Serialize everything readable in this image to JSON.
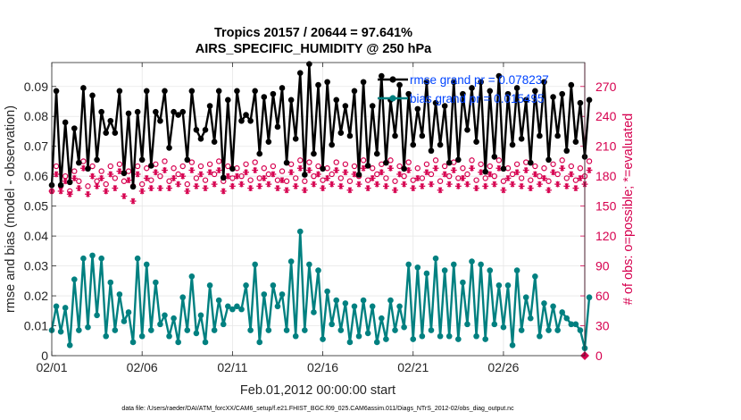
{
  "chart_data": {
    "type": "line",
    "title": "Tropics 20157 / 20644 = 97.641%",
    "subtitle": "AIRS_SPECIFIC_HUMIDITY @ 250 hPa",
    "xlabel": "Feb.01,2012 00:00:00 start",
    "ylabel_left": "rmse and bias (model - observation)",
    "ylabel_right": "# of obs: o=possible; *=evaluated",
    "footnote": "data file: /Users/raeder/DAI/ATM_forcXX/CAM6_setup/f.e21.FHIST_BGC.f09_025.CAM6assim.011/Diags_NTrS_2012-02/obs_diag_output.nc",
    "xlim": [
      0,
      29.5
    ],
    "ylim_left": [
      0,
      0.098
    ],
    "ylim_right": [
      0,
      294
    ],
    "x_ticks": [
      0,
      5,
      10,
      15,
      20,
      25
    ],
    "x_tick_labels": [
      "02/01",
      "02/06",
      "02/11",
      "02/16",
      "02/21",
      "02/26"
    ],
    "y_left_ticks": [
      0,
      0.01,
      0.02,
      0.03,
      0.04,
      0.05,
      0.06,
      0.07,
      0.08,
      0.09
    ],
    "y_left_tick_labels": [
      "0",
      "0.01",
      "0.02",
      "0.03",
      "0.04",
      "0.05",
      "0.06",
      "0.07",
      "0.08",
      "0.09"
    ],
    "y_right_ticks": [
      0,
      30,
      60,
      90,
      120,
      150,
      180,
      210,
      240,
      270
    ],
    "y_right_tick_labels": [
      "0",
      "30",
      "60",
      "90",
      "120",
      "150",
      "180",
      "210",
      "240",
      "270"
    ],
    "grid": true,
    "legend": {
      "placement": "top-right",
      "entries": [
        {
          "label": "rmse grand pr = 0.078237",
          "series": "rmse"
        },
        {
          "label": "bias grand pr = 0.015495",
          "series": "bias"
        }
      ]
    },
    "colors": {
      "rmse": "#000000",
      "bias": "#008080",
      "obs": "#d6004f",
      "legend_text": "#0044ff"
    },
    "x_step": 0.25,
    "series": [
      {
        "name": "rmse",
        "axis": "left",
        "values": [
          0.057,
          0.0885,
          0.057,
          0.078,
          0.058,
          0.076,
          0.0645,
          0.0895,
          0.0625,
          0.087,
          0.0655,
          0.0815,
          0.0745,
          0.0785,
          0.0745,
          0.0885,
          0.061,
          0.081,
          0.0565,
          0.0815,
          0.0655,
          0.0885,
          0.0635,
          0.0815,
          0.0785,
          0.0885,
          0.0695,
          0.0815,
          0.0805,
          0.0815,
          0.0655,
          0.0885,
          0.0755,
          0.0725,
          0.0755,
          0.0835,
          0.0715,
          0.0885,
          0.0595,
          0.0855,
          0.0625,
          0.0885,
          0.0785,
          0.0805,
          0.0785,
          0.0885,
          0.0675,
          0.0865,
          0.0715,
          0.0875,
          0.0765,
          0.0895,
          0.0645,
          0.0855,
          0.0725,
          0.0945,
          0.0605,
          0.0975,
          0.0675,
          0.0905,
          0.0625,
          0.0915,
          0.0705,
          0.0855,
          0.0745,
          0.0835,
          0.0735,
          0.0885,
          0.0605,
          0.0915,
          0.0635,
          0.0835,
          0.0675,
          0.0935,
          0.0645,
          0.0855,
          0.0735,
          0.0905,
          0.0625,
          0.0875,
          0.0705,
          0.0825,
          0.0735,
          0.0915,
          0.0685,
          0.0845,
          0.0705,
          0.0835,
          0.0645,
          0.0915,
          0.0655,
          0.0875,
          0.0755,
          0.0895,
          0.0715,
          0.0915,
          0.0615,
          0.0885,
          0.0665,
          0.0935,
          0.0625,
          0.0875,
          0.0705,
          0.0895,
          0.0725,
          0.0855,
          0.0645,
          0.0885,
          0.0735,
          0.0915,
          0.0655,
          0.0865,
          0.0735,
          0.0875,
          0.0685,
          0.0905,
          0.0715,
          0.0845,
          0.0665,
          0.0855
        ]
      },
      {
        "name": "bias",
        "axis": "left",
        "values": [
          0.0085,
          0.0165,
          0.008,
          0.016,
          0.0035,
          0.0255,
          0.0085,
          0.0325,
          0.0095,
          0.0335,
          0.0135,
          0.0325,
          0.0065,
          0.0245,
          0.0085,
          0.0205,
          0.0115,
          0.0145,
          0.0045,
          0.0325,
          0.0065,
          0.0305,
          0.0085,
          0.0245,
          0.0105,
          0.0135,
          0.0065,
          0.0125,
          0.0045,
          0.0195,
          0.0085,
          0.0265,
          0.0075,
          0.0135,
          0.0045,
          0.0235,
          0.0085,
          0.0185,
          0.0105,
          0.0165,
          0.0155,
          0.0165,
          0.0155,
          0.0235,
          0.0085,
          0.0305,
          0.0045,
          0.0205,
          0.0085,
          0.0235,
          0.0165,
          0.0205,
          0.0085,
          0.0315,
          0.0065,
          0.0415,
          0.0085,
          0.0305,
          0.0145,
          0.0285,
          0.0055,
          0.0215,
          0.0105,
          0.0185,
          0.0085,
          0.0175,
          0.0045,
          0.0165,
          0.0065,
          0.0185,
          0.0075,
          0.0165,
          0.0045,
          0.0125,
          0.0055,
          0.0185,
          0.0085,
          0.0165,
          0.0095,
          0.0305,
          0.0055,
          0.0295,
          0.0065,
          0.0275,
          0.0085,
          0.0325,
          0.0065,
          0.0285,
          0.0065,
          0.0305,
          0.0055,
          0.0245,
          0.0105,
          0.0315,
          0.0065,
          0.0305,
          0.0055,
          0.0285,
          0.0105,
          0.0235,
          0.0095,
          0.0235,
          0.0035,
          0.0285,
          0.0085,
          0.0195,
          0.0125,
          0.0265,
          0.0065,
          0.0175,
          0.0085,
          0.0165,
          0.0085,
          0.0145,
          0.0125,
          0.0105,
          0.0105,
          0.0085,
          0.0025,
          0.0195
        ]
      },
      {
        "name": "obs_possible",
        "axis": "right",
        "marker": "circle",
        "values": [
          165,
          190,
          170,
          180,
          165,
          185,
          175,
          195,
          170,
          190,
          175,
          185,
          172,
          190,
          178,
          192,
          175,
          185,
          170,
          190,
          172,
          188,
          176,
          192,
          180,
          195,
          175,
          188,
          182,
          190,
          172,
          194,
          178,
          190,
          176,
          192,
          182,
          195,
          175,
          190,
          178,
          188,
          180,
          192,
          176,
          194,
          178,
          188,
          182,
          190,
          176,
          185,
          175,
          192,
          178,
          196,
          175,
          194,
          180,
          190,
          176,
          188,
          182,
          194,
          178,
          192,
          175,
          190,
          180,
          196,
          176,
          188,
          182,
          192,
          178,
          196,
          175,
          190,
          180,
          194,
          176,
          188,
          178,
          192,
          182,
          196,
          175,
          190,
          180,
          194,
          178,
          188,
          182,
          196,
          176,
          192,
          178,
          190,
          180,
          196,
          175,
          188,
          182,
          192,
          178,
          194,
          176,
          190,
          180,
          188,
          175,
          192,
          182,
          196,
          178,
          190,
          176,
          188,
          180,
          195
        ]
      },
      {
        "name": "obs_evaluated",
        "axis": "right",
        "marker": "asterisk",
        "values": [
          165,
          182,
          165,
          175,
          162,
          178,
          168,
          188,
          162,
          180,
          170,
          178,
          165,
          182,
          168,
          185,
          160,
          176,
          155,
          182,
          165,
          178,
          168,
          184,
          168,
          186,
          168,
          178,
          172,
          180,
          165,
          186,
          170,
          182,
          168,
          184,
          172,
          186,
          165,
          180,
          170,
          180,
          172,
          184,
          168,
          186,
          170,
          178,
          172,
          182,
          168,
          176,
          166,
          184,
          170,
          188,
          166,
          186,
          172,
          182,
          168,
          178,
          172,
          186,
          170,
          184,
          166,
          182,
          172,
          188,
          168,
          178,
          172,
          184,
          170,
          188,
          166,
          182,
          172,
          186,
          168,
          178,
          170,
          184,
          172,
          188,
          166,
          182,
          172,
          186,
          170,
          178,
          172,
          188,
          168,
          184,
          170,
          182,
          172,
          188,
          166,
          178,
          172,
          184,
          170,
          186,
          168,
          182,
          172,
          178,
          166,
          184,
          172,
          188,
          170,
          182,
          168,
          178,
          172,
          186
        ]
      }
    ],
    "extra_points": [
      {
        "series": "obs_evaluated",
        "x": 29.5,
        "y": 0
      }
    ]
  }
}
